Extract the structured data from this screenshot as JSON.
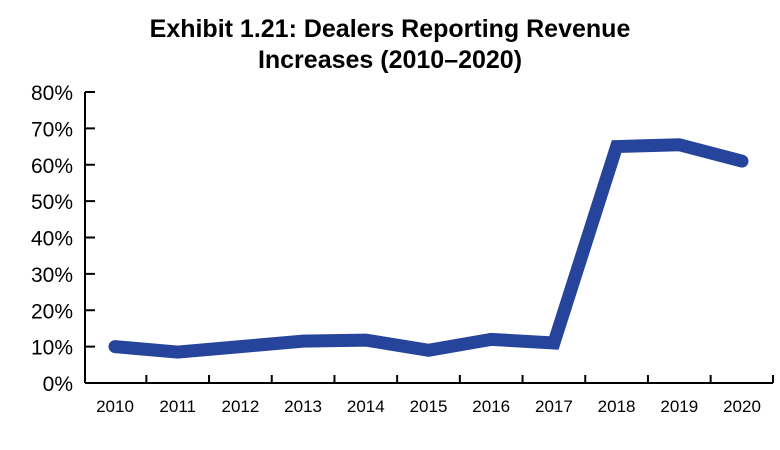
{
  "chart_data": {
    "type": "line",
    "title_lines": [
      "Exhibit 1.21: Dealers Reporting Revenue",
      "Increases (2010–2020)"
    ],
    "xlabel": "",
    "ylabel": "",
    "categories": [
      "2010",
      "2011",
      "2012",
      "2013",
      "2014",
      "2015",
      "2016",
      "2017",
      "2018",
      "2019",
      "2020"
    ],
    "series": [
      {
        "color": "#26449b",
        "values": [
          10,
          8.5,
          10,
          11.5,
          11.8,
          9,
          12,
          11,
          65,
          65.5,
          61
        ]
      }
    ],
    "ylim": [
      0,
      80
    ],
    "yticks": [
      0,
      10,
      20,
      30,
      40,
      50,
      60,
      70,
      80
    ],
    "ytick_labels": [
      "0%",
      "10%",
      "20%",
      "30%",
      "40%",
      "50%",
      "60%",
      "70%",
      "80%"
    ],
    "grid": false,
    "legend": "none"
  }
}
